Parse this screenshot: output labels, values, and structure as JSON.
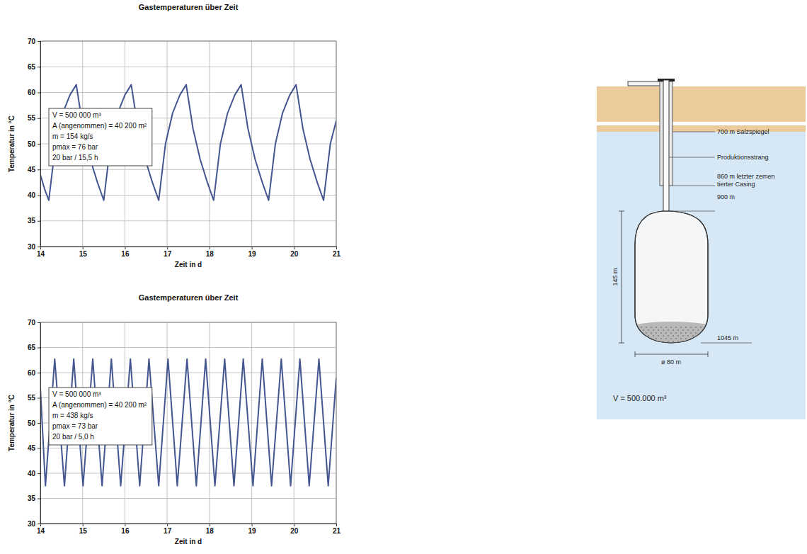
{
  "chart_data": [
    {
      "type": "line",
      "title": "Gastemperaturen über Zeit",
      "x_label": "Zeit in d",
      "y_label": "Temperatur in °C",
      "annotations": [
        "V = 500 000 m³",
        "A (angenommen) = 40 200 m²",
        "m = 154 kg/s",
        "pmax = 76 bar",
        "20 bar / 15,5 h"
      ],
      "x": [
        14,
        14.1,
        14.2,
        14.36,
        14.53,
        14.7,
        14.85,
        15.01,
        15.18,
        15.35,
        15.5,
        15.66,
        15.83,
        16.0,
        16.15,
        16.31,
        16.48,
        16.65,
        16.8,
        16.96,
        17.13,
        17.3,
        17.45,
        17.61,
        17.78,
        17.95,
        18.1,
        18.26,
        18.43,
        18.6,
        18.75,
        18.91,
        19.08,
        19.25,
        19.4,
        19.56,
        19.73,
        19.9,
        20.05,
        20.21,
        20.38,
        20.55,
        20.7,
        20.86,
        21
      ],
      "series": [
        {
          "color": "#44558f",
          "values": [
            44,
            41.2,
            39,
            50,
            56,
            59.5,
            61.5,
            53,
            47,
            42.5,
            39,
            50,
            56,
            59.5,
            61.5,
            53,
            47,
            42.5,
            39,
            50,
            56,
            59.5,
            61.5,
            53,
            47,
            42.5,
            39,
            50,
            56,
            59.5,
            61.5,
            53,
            47,
            42.5,
            39,
            50,
            56,
            59.5,
            61.5,
            53,
            47,
            42.5,
            39,
            50,
            54.5
          ]
        }
      ],
      "xlim": [
        14,
        21
      ],
      "xticks": [
        14,
        15,
        16,
        17,
        18,
        19,
        20,
        21
      ],
      "ylim": [
        30,
        70
      ],
      "yticks": [
        30,
        35,
        40,
        45,
        50,
        55,
        60,
        65,
        70
      ],
      "grid": true
    },
    {
      "type": "line",
      "title": "Gastemperaturen über Zeit",
      "x_label": "Zeit in d",
      "y_label": "Temperatur in °C",
      "annotations": [
        "V = 500 000 m³",
        "A (angenommen) = 40 200 m²",
        "m = 438 kg/s",
        "pmax = 73 bar",
        "20 bar / 5,0 h"
      ],
      "x": [
        14,
        14.12,
        14.34,
        14.57,
        14.79,
        15.01,
        15.24,
        15.46,
        15.68,
        15.9,
        16.13,
        16.35,
        16.57,
        16.8,
        17.02,
        17.24,
        17.47,
        17.69,
        17.91,
        18.13,
        18.36,
        18.58,
        18.8,
        19.03,
        19.25,
        19.47,
        19.7,
        19.92,
        20.14,
        20.36,
        20.59,
        20.81,
        21
      ],
      "series": [
        {
          "color": "#44558f",
          "values": [
            57,
            37.5,
            62.7,
            37.5,
            62.7,
            37.5,
            62.7,
            37.5,
            62.7,
            37.5,
            62.7,
            37.5,
            62.7,
            37.5,
            62.7,
            37.5,
            62.7,
            37.5,
            62.7,
            37.5,
            62.7,
            37.5,
            62.7,
            37.5,
            62.7,
            37.5,
            62.7,
            37.5,
            62.7,
            37.5,
            62.7,
            37.5,
            59
          ]
        }
      ],
      "xlim": [
        14,
        21
      ],
      "xticks": [
        14,
        15,
        16,
        17,
        18,
        19,
        20,
        21
      ],
      "ylim": [
        30,
        70
      ],
      "yticks": [
        30,
        35,
        40,
        45,
        50,
        55,
        60,
        65,
        70
      ],
      "grid": true
    }
  ],
  "diagram": {
    "salzspiegel": "700 m Salzspiegel",
    "strang": "Produktionsstrang",
    "casing": [
      "860 m letzter zemen",
      "tierter Casing"
    ],
    "top": "900 m",
    "height": "145 m",
    "bottom": "1045 m",
    "diameter": "ø 80 m",
    "volume": "V = 500.000 m³"
  }
}
